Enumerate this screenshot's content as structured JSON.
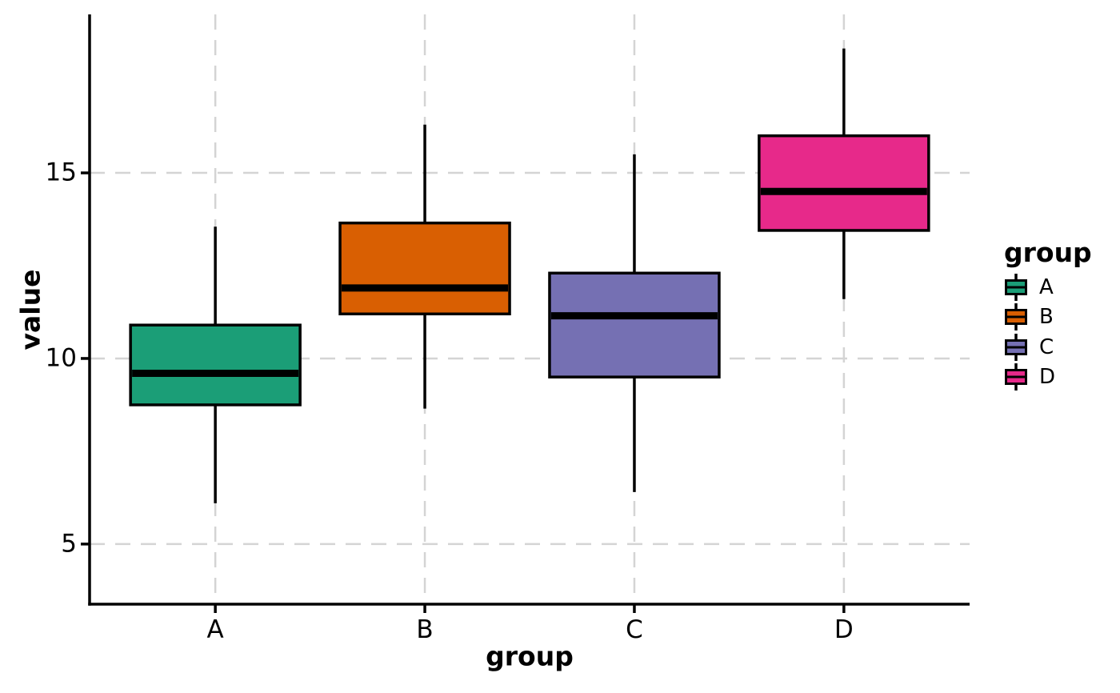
{
  "chart_data": {
    "type": "boxplot",
    "title": "",
    "xlabel": "group",
    "ylabel": "value",
    "categories": [
      "A",
      "B",
      "C",
      "D"
    ],
    "series": [
      {
        "name": "A",
        "color": "#1B9E77",
        "min": 6.1,
        "q1": 8.75,
        "median": 9.6,
        "q3": 10.9,
        "max": 13.55
      },
      {
        "name": "B",
        "color": "#D95F02",
        "min": 8.65,
        "q1": 11.2,
        "median": 11.9,
        "q3": 13.65,
        "max": 16.3
      },
      {
        "name": "C",
        "color": "#7570B3",
        "min": 6.4,
        "q1": 9.5,
        "median": 11.15,
        "q3": 12.3,
        "max": 15.5
      },
      {
        "name": "D",
        "color": "#E7298A",
        "min": 11.6,
        "q1": 13.45,
        "median": 14.5,
        "q3": 16.0,
        "max": 18.35
      }
    ],
    "yticks": [
      {
        "label": "15",
        "value": 15
      },
      {
        "label": "10",
        "value": 10
      },
      {
        "label": "5",
        "value": 5
      }
    ],
    "ylim": [
      3.38,
      19.27
    ],
    "grid": {
      "horizontal": true,
      "vertical": true,
      "style": "dashed",
      "color": "#d4d4d4"
    },
    "axis_color": "#000000",
    "median_color": "#000000",
    "background": "#ffffff",
    "legend": {
      "title": "group",
      "position": "right",
      "entries": [
        "A",
        "B",
        "C",
        "D"
      ]
    }
  }
}
